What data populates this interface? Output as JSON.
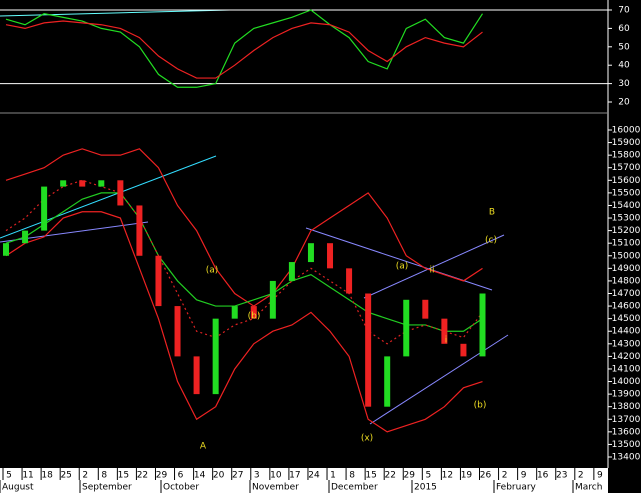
{
  "chart_data": [
    {
      "type": "line",
      "categories": [
        "5",
        "11",
        "18",
        "25",
        "2",
        "8",
        "15",
        "22",
        "29",
        "6",
        "14",
        "20",
        "27",
        "3",
        "10",
        "17",
        "24",
        "1",
        "8",
        "15",
        "22",
        "29",
        "5",
        "12",
        "19",
        "26",
        "2",
        "9",
        "16",
        "23",
        "2",
        "9"
      ],
      "ylim": [
        15,
        75
      ],
      "yticks": [
        20,
        30,
        40,
        50,
        60,
        70
      ],
      "levels": [
        70,
        30
      ],
      "series": [
        {
          "name": "oscillator",
          "color": "#22dd22",
          "values": [
            65,
            62,
            68,
            66,
            64,
            60,
            58,
            50,
            35,
            28,
            28,
            30,
            52,
            60,
            63,
            66,
            70,
            62,
            55,
            42,
            38,
            60,
            65,
            55,
            52,
            68,
            null,
            null,
            null,
            null,
            null,
            null
          ]
        },
        {
          "name": "signal",
          "color": "#ee2222",
          "values": [
            62,
            60,
            63,
            64,
            63,
            62,
            60,
            55,
            45,
            38,
            33,
            33,
            40,
            48,
            55,
            60,
            63,
            62,
            58,
            48,
            42,
            50,
            55,
            52,
            50,
            58,
            null,
            null,
            null,
            null,
            null,
            null
          ]
        }
      ]
    },
    {
      "type": "candlestick",
      "ylim": [
        13300,
        16100
      ],
      "yticks": [
        13400,
        13500,
        13600,
        13700,
        13800,
        13900,
        14000,
        14100,
        14200,
        14300,
        14400,
        14500,
        14600,
        14700,
        14800,
        14900,
        15000,
        15100,
        15200,
        15300,
        15400,
        15500,
        15600,
        15700,
        15800,
        15900,
        16000
      ],
      "months": [
        "August",
        "September",
        "October",
        "November",
        "December",
        "2015",
        "February",
        "March"
      ],
      "open": [
        15000,
        15100,
        15200,
        15550,
        15600,
        15550,
        15600,
        15400,
        15000,
        14600,
        14200,
        13900,
        14500,
        14600,
        14500,
        14800,
        14950,
        15100,
        14900,
        14700,
        13800,
        14200,
        14650,
        14500,
        14300,
        14200,
        null,
        null,
        null,
        null,
        null,
        null
      ],
      "close": [
        15100,
        15200,
        15550,
        15600,
        15550,
        15600,
        15400,
        15000,
        14600,
        14200,
        13900,
        14500,
        14600,
        14500,
        14800,
        14950,
        15100,
        14900,
        14700,
        13800,
        14200,
        14650,
        14500,
        14300,
        14200,
        14700,
        null,
        null,
        null,
        null,
        null,
        null
      ],
      "series": [
        {
          "name": "upper band",
          "color": "#ee2222",
          "values": [
            15600,
            15650,
            15700,
            15800,
            15850,
            15800,
            15800,
            15850,
            15700,
            15400,
            15200,
            14900,
            14700,
            14600,
            14700,
            14900,
            15200,
            15300,
            15400,
            15500,
            15300,
            15000,
            14900,
            14850,
            14800,
            14900,
            null,
            null,
            null,
            null,
            null,
            null
          ]
        },
        {
          "name": "lower band",
          "color": "#ee2222",
          "values": [
            15000,
            15100,
            15150,
            15300,
            15350,
            15350,
            15300,
            14900,
            14500,
            14000,
            13700,
            13800,
            14100,
            14300,
            14400,
            14450,
            14550,
            14400,
            14200,
            13700,
            13600,
            13650,
            13700,
            13800,
            13950,
            14000,
            null,
            null,
            null,
            null,
            null,
            null
          ]
        },
        {
          "name": "moving average",
          "color": "#22cc22",
          "values": [
            15100,
            15150,
            15250,
            15350,
            15450,
            15500,
            15500,
            15300,
            15000,
            14800,
            14650,
            14600,
            14600,
            14650,
            14700,
            14800,
            14850,
            14750,
            14650,
            14550,
            14500,
            14450,
            14450,
            14400,
            14400,
            14500,
            null,
            null,
            null,
            null,
            null,
            null
          ]
        },
        {
          "name": "short average",
          "color": "#dd2222",
          "dashed": true,
          "values": [
            15200,
            15300,
            15450,
            15550,
            15600,
            15550,
            15500,
            15300,
            15000,
            14700,
            14400,
            14350,
            14450,
            14500,
            14650,
            14800,
            14900,
            14800,
            14700,
            14400,
            14300,
            14400,
            14450,
            14400,
            14350,
            14550,
            null,
            null,
            null,
            null,
            null,
            null
          ]
        }
      ],
      "annotations": [
        "A",
        "(a)",
        "(b)",
        "(a)",
        "ii",
        "i",
        "(x)",
        "(b)",
        "(c)",
        "B"
      ]
    }
  ]
}
